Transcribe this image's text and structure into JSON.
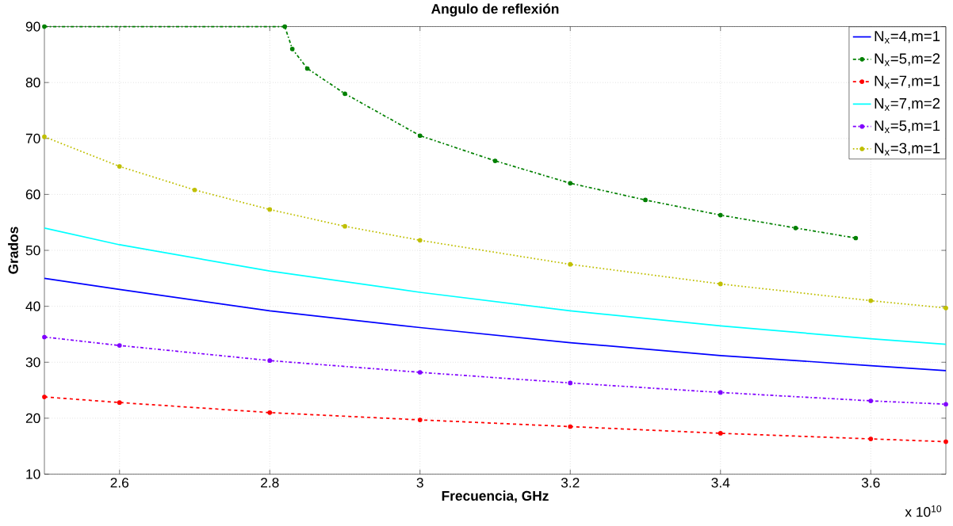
{
  "chart_data": {
    "type": "line",
    "title": "Angulo de reflexión",
    "xlabel": "Frecuencia, GHz",
    "ylabel": "Grados",
    "annotations": [
      "x 10$^{10}$"
    ],
    "xlim": [
      2.5,
      3.7
    ],
    "ylim": [
      10,
      90
    ],
    "xticks": [
      2.6,
      2.8,
      3,
      3.2,
      3.4,
      3.6
    ],
    "yticks": [
      10,
      20,
      30,
      40,
      50,
      60,
      70,
      80,
      90
    ],
    "grid": true,
    "legend": "top right",
    "series": [
      {
        "name": "N$_{x}$=4,m=1",
        "color": "#0000ff",
        "line_style": "solid",
        "marker": "none",
        "x": [
          2.5,
          2.6,
          2.8,
          3.0,
          3.2,
          3.4,
          3.6,
          3.7
        ],
        "values": [
          45,
          43,
          39.2,
          36.2,
          33.5,
          31.2,
          29.4,
          28.5
        ]
      },
      {
        "name": "N$_{x}$=5,m=2",
        "color": "#008000",
        "line_style": "dashdot",
        "marker": "circle",
        "x": [
          2.5,
          2.82,
          2.83,
          2.85,
          2.9,
          3.0,
          3.1,
          3.2,
          3.3,
          3.4,
          3.5,
          3.58
        ],
        "values": [
          90,
          90,
          86,
          82.5,
          78,
          70.5,
          66,
          62,
          59,
          56.3,
          54,
          52.2
        ]
      },
      {
        "name": "N$_{x}$=7,m=1",
        "color": "#ff0000",
        "line_style": "dashed",
        "marker": "circle",
        "x": [
          2.5,
          2.6,
          2.8,
          3.0,
          3.2,
          3.4,
          3.6,
          3.7
        ],
        "values": [
          23.8,
          22.8,
          21,
          19.7,
          18.5,
          17.3,
          16.3,
          15.8
        ]
      },
      {
        "name": "N$_{x}$=7,m=2",
        "color": "#00ffff",
        "line_style": "solid",
        "marker": "none",
        "x": [
          2.5,
          2.6,
          2.8,
          3.0,
          3.2,
          3.4,
          3.6,
          3.7
        ],
        "values": [
          54,
          51,
          46.3,
          42.5,
          39.2,
          36.5,
          34.2,
          33.2
        ]
      },
      {
        "name": "N$_{x}$=5,m=1",
        "color": "#8000ff",
        "line_style": "dashdot",
        "marker": "circle",
        "x": [
          2.5,
          2.6,
          2.8,
          3.0,
          3.2,
          3.4,
          3.6,
          3.7
        ],
        "values": [
          34.5,
          33,
          30.3,
          28.2,
          26.3,
          24.6,
          23.1,
          22.5
        ]
      },
      {
        "name": "N$_{x}$=3,m=1",
        "color": "#bfbf00",
        "line_style": "dotted",
        "marker": "circle",
        "x": [
          2.5,
          2.6,
          2.7,
          2.8,
          2.9,
          3.0,
          3.2,
          3.4,
          3.6,
          3.7
        ],
        "values": [
          70.3,
          65,
          60.8,
          57.3,
          54.3,
          51.8,
          47.5,
          44,
          41,
          39.7
        ]
      }
    ]
  }
}
